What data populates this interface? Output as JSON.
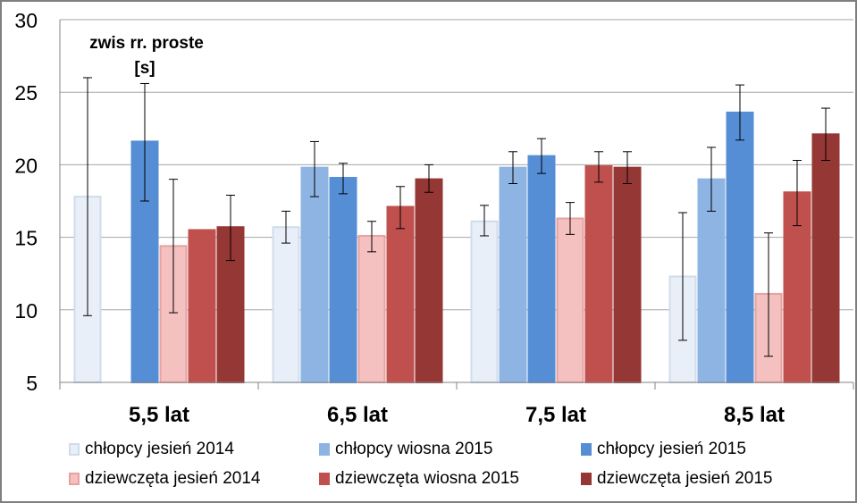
{
  "chart_data": {
    "type": "bar",
    "title": "zwis rr. proste",
    "unit_label": "[s]",
    "categories": [
      "5,5 lat",
      "6,5 lat",
      "7,5 lat",
      "8,5 lat"
    ],
    "ylim": [
      5,
      30
    ],
    "yticks": [
      5,
      10,
      15,
      20,
      25,
      30
    ],
    "grid": true,
    "legend_position": "bottom",
    "series": [
      {
        "name": "chłopcy jesień 2014",
        "fill": "#e9eff8",
        "stroke": "#d0dcec",
        "values": [
          17.8,
          15.7,
          16.1,
          12.3
        ],
        "err_low": [
          9.6,
          14.6,
          15.1,
          7.9
        ],
        "err_high": [
          26.0,
          16.8,
          17.2,
          16.7
        ]
      },
      {
        "name": "chłopcy wiosna 2015",
        "fill": "#8eb4e3",
        "stroke": "#8eb4e3",
        "values": [
          null,
          19.8,
          19.8,
          19.0
        ],
        "err_low": [
          null,
          17.8,
          18.7,
          16.8
        ],
        "err_high": [
          null,
          21.6,
          20.9,
          21.2
        ]
      },
      {
        "name": "chłopcy jesień 2015",
        "fill": "#558ed5",
        "stroke": "#558ed5",
        "values": [
          21.6,
          19.1,
          20.6,
          23.6
        ],
        "err_low": [
          17.5,
          18.0,
          19.4,
          21.7
        ],
        "err_high": [
          25.6,
          20.1,
          21.8,
          25.5
        ]
      },
      {
        "name": "dziewczęta jesień 2014",
        "fill": "#f4c1c0",
        "stroke": "#e6a2a0",
        "values": [
          14.4,
          15.1,
          16.3,
          11.1
        ],
        "err_low": [
          9.8,
          14.0,
          15.2,
          6.8
        ],
        "err_high": [
          19.0,
          16.1,
          17.4,
          15.3
        ]
      },
      {
        "name": "dziewczęta wiosna 2015",
        "fill": "#c0504d",
        "stroke": "#c0504d",
        "values": [
          15.5,
          17.1,
          19.9,
          18.1
        ],
        "err_low": [
          15.5,
          15.6,
          18.8,
          15.8
        ],
        "err_high": [
          15.5,
          18.5,
          20.9,
          20.3
        ]
      },
      {
        "name": "dziewczęta jesień 2015",
        "fill": "#953735",
        "stroke": "#953735",
        "values": [
          15.7,
          19.0,
          19.8,
          22.1
        ],
        "err_low": [
          13.4,
          18.1,
          18.7,
          20.3
        ],
        "err_high": [
          17.9,
          20.0,
          20.9,
          23.9
        ]
      }
    ]
  }
}
